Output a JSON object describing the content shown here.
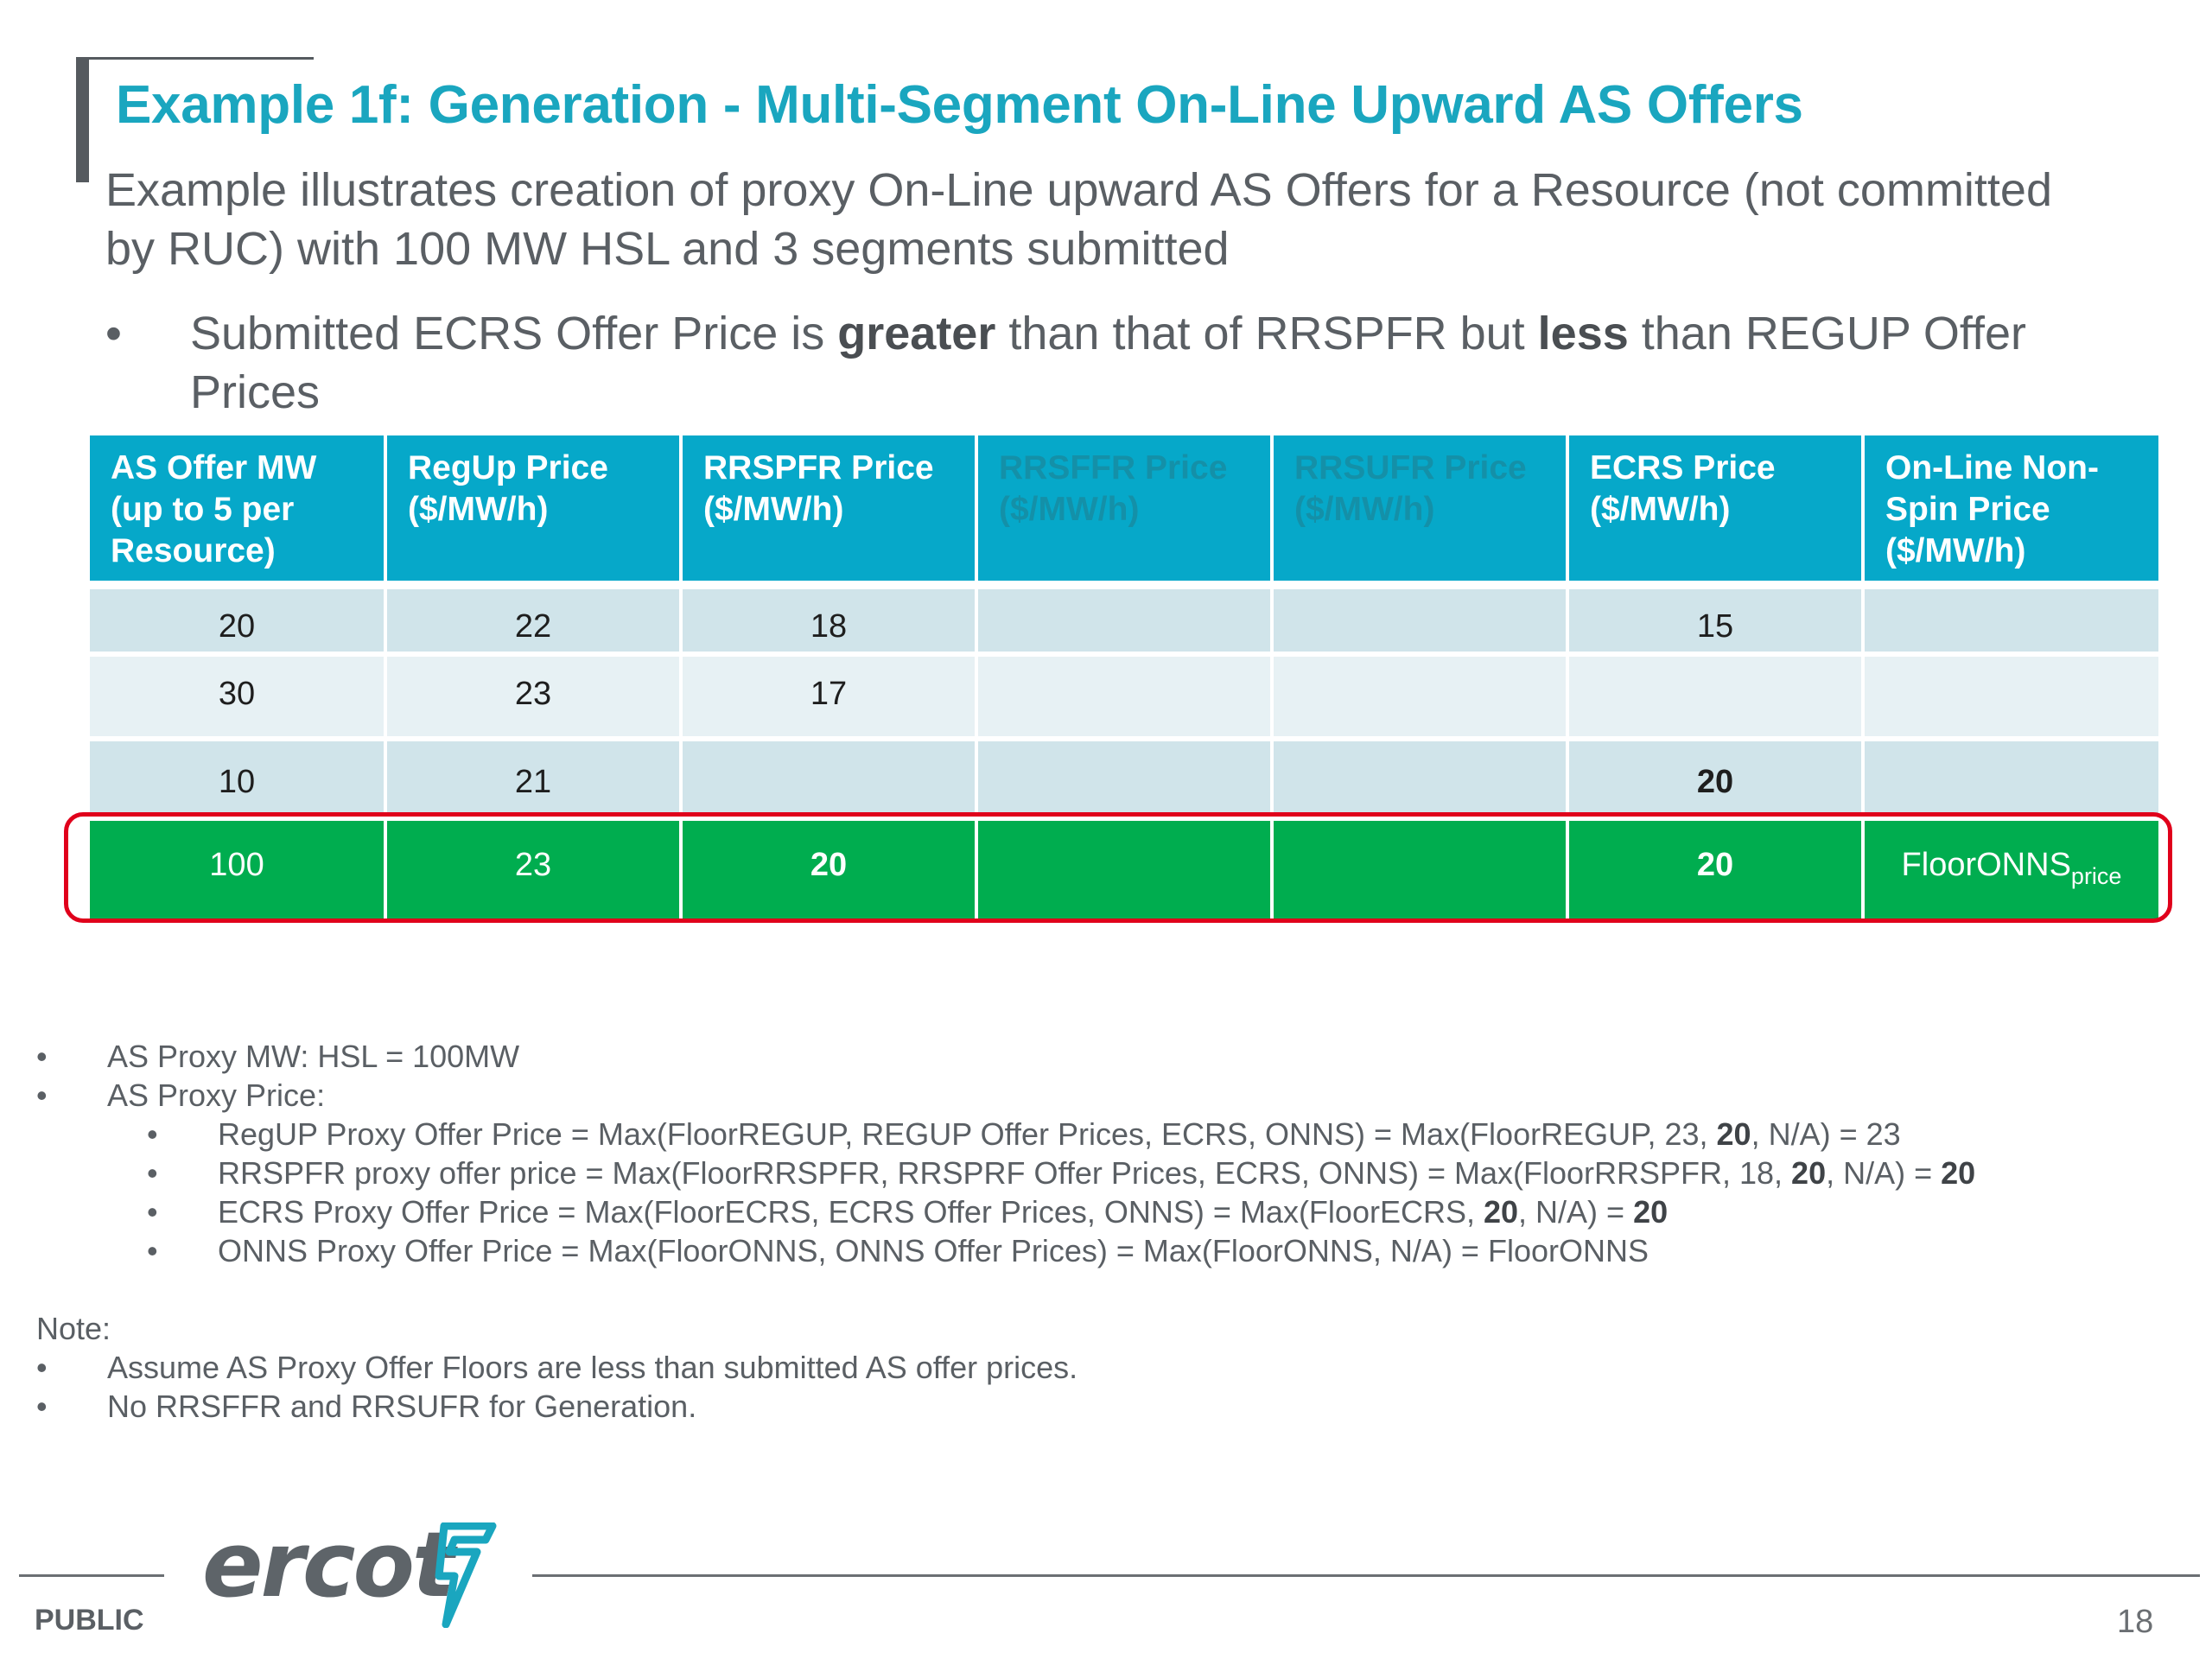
{
  "slide": {
    "title": "Example 1f: Generation - Multi-Segment On-Line Upward AS Offers",
    "intro": "Example illustrates creation of proxy On-Line upward AS Offers for a Resource (not committed by RUC) with 100 MW HSL and 3 segments submitted",
    "bullet": {
      "marker": "•",
      "part1": "Submitted ECRS Offer Price is ",
      "bold1": "greater",
      "part2": " than that of RRSPFR but ",
      "bold2": "less",
      "part3": " than REGUP Offer Prices"
    }
  },
  "table": {
    "headers": [
      "AS Offer MW (up to 5 per Resource)",
      "RegUp Price ($/MW/h)",
      "RRSPFR Price ($/MW/h)",
      "RRSFFR Price ($/MW/h)",
      "RRSUFR Price ($/MW/h)",
      "ECRS Price ($/MW/h)",
      "On-Line Non-Spin Price ($/MW/h)"
    ],
    "rows": [
      [
        "20",
        "22",
        "18",
        "",
        "",
        "15",
        ""
      ],
      [
        "30",
        "23",
        "17",
        "",
        "",
        "",
        ""
      ],
      [
        "10",
        "21",
        "",
        "",
        "",
        "20",
        ""
      ]
    ],
    "proxy_row": {
      "mw": "100",
      "regup": "23",
      "rrspfr": "20",
      "rrsffr": "",
      "rrsufr": "",
      "ecrs": "20",
      "onns_main": "FloorONNS",
      "onns_sub": "price"
    },
    "highlight_color": "#e0001b",
    "header_color": "#06a8c9",
    "proxy_row_color": "#00ad4f"
  },
  "notes": {
    "bullet": "•",
    "proxy_mw": "AS Proxy MW: HSL = 100MW",
    "proxy_price": "AS Proxy Price:",
    "regup": {
      "pre": "RegUP Proxy Offer Price = Max(FloorREGUP, REGUP Offer Prices, ECRS, ONNS) = Max(FloorREGUP, 23, ",
      "b1": "20",
      "post": ", N/A) = 23"
    },
    "rrspfr": {
      "pre": "RRSPFR proxy offer price = Max(FloorRRSPFR, RRSPRF Offer Prices, ECRS, ONNS) = Max(FloorRRSPFR, 18, ",
      "b1": "20",
      "mid": ", N/A) = ",
      "b2": "20"
    },
    "ecrs": {
      "pre": "ECRS Proxy Offer Price = Max(FloorECRS, ECRS Offer Prices, ONNS) = Max(FloorECRS, ",
      "b1": "20",
      "mid": ", N/A) = ",
      "b2": "20"
    },
    "onns": "ONNS Proxy Offer Price = Max(FloorONNS, ONNS Offer Prices) = Max(FloorONNS, N/A) = FloorONNS",
    "note_label": "Note:",
    "note1": "Assume AS Proxy Offer Floors are less than submitted AS offer prices.",
    "note2": "No RRSFFR and RRSUFR for Generation."
  },
  "footer": {
    "logo_text": "ercot",
    "logo_icon": "ercot-bolt-icon",
    "classification": "PUBLIC",
    "page_number": "18"
  }
}
